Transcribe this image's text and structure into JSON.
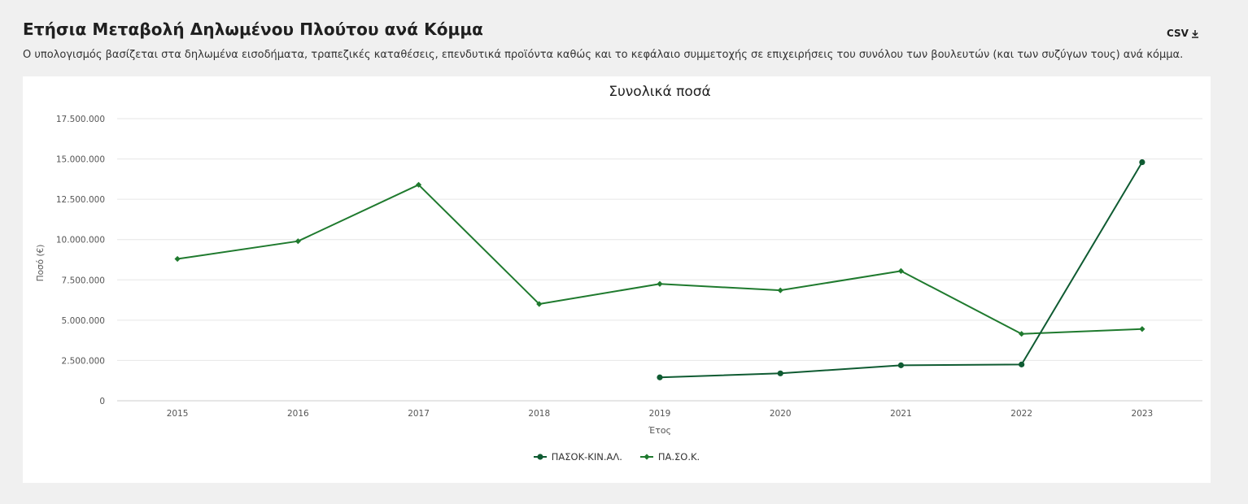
{
  "header": {
    "title": "Ετήσια Μεταβολή Δηλωμένου Πλούτου ανά Κόμμα",
    "subtitle": "Ο υπολογισμός βασίζεται στα δηλωμένα εισοδήματα, τραπεζικές καταθέσεις, επενδυτικά προϊόντα καθώς και το κεφάλαιο συμμετοχής σε επιχειρήσεις του συνόλου των βουλευτών (και των συζύγων τους) ανά κόμμα.",
    "csv_label": "CSV",
    "csv_icon": "download-icon"
  },
  "colors": {
    "series_line": "#1f7a2e",
    "series_alt": "#0f5b32",
    "grid": "#e6e6e6",
    "axis_text": "#555555"
  },
  "chart_data": {
    "type": "line",
    "title": "Συνολικά ποσά",
    "xlabel": "Έτος",
    "ylabel": "Ποσό (€)",
    "x": [
      "2015",
      "2016",
      "2017",
      "2018",
      "2019",
      "2020",
      "2021",
      "2022",
      "2023"
    ],
    "ylim": [
      0,
      17500000
    ],
    "yticks": [
      "0",
      "2.500.000",
      "5.000.000",
      "7.500.000",
      "10.000.000",
      "12.500.000",
      "15.000.000",
      "17.500.000"
    ],
    "grid": true,
    "legend_position": "bottom-center",
    "series": [
      {
        "name": "ΠΑΣΟΚ-ΚΙΝ.ΑΛ.",
        "marker": "circle",
        "values": [
          null,
          null,
          null,
          null,
          1450000,
          1700000,
          2200000,
          2250000,
          14800000
        ]
      },
      {
        "name": "ΠΑ.ΣΟ.Κ.",
        "marker": "diamond",
        "values": [
          8800000,
          9900000,
          13400000,
          6000000,
          7250000,
          6850000,
          8050000,
          4150000,
          4450000
        ]
      }
    ]
  }
}
